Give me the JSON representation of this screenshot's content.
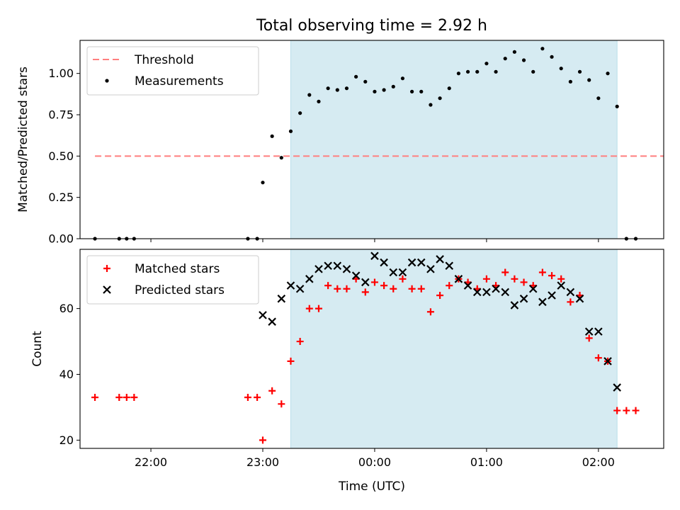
{
  "chart_data": [
    {
      "type": "scatter",
      "title": "Total observing time = 2.92 h",
      "xlabel": "",
      "ylabel": "Matched/Predicted stars",
      "x_axis": "time",
      "xlim": [
        "21:22",
        "02:35"
      ],
      "ylim": [
        0,
        1.2
      ],
      "yticks": [
        0.0,
        0.25,
        0.5,
        0.75,
        1.0
      ],
      "ytick_labels": [
        "0.00",
        "0.25",
        "0.50",
        "0.75",
        "1.00"
      ],
      "grid": false,
      "legend_position": "upper left",
      "shaded_region": {
        "from": "23:15",
        "to": "02:10",
        "color": "#add8e6"
      },
      "series": [
        {
          "name": "Threshold",
          "kind": "line",
          "color": "#ff7f7f",
          "style": "dashed",
          "points": [
            [
              "21:30",
              0.5
            ],
            [
              "02:35",
              0.5
            ]
          ]
        },
        {
          "name": "Measurements",
          "kind": "scatter",
          "color": "#000000",
          "points": [
            [
              "21:30",
              0.0
            ],
            [
              "21:43",
              0.0
            ],
            [
              "21:47",
              0.0
            ],
            [
              "21:51",
              0.0
            ],
            [
              "22:52",
              0.0
            ],
            [
              "22:57",
              0.0
            ],
            [
              "23:00",
              0.34
            ],
            [
              "23:05",
              0.62
            ],
            [
              "23:10",
              0.49
            ],
            [
              "23:15",
              0.65
            ],
            [
              "23:20",
              0.76
            ],
            [
              "23:25",
              0.87
            ],
            [
              "23:30",
              0.83
            ],
            [
              "23:35",
              0.91
            ],
            [
              "23:40",
              0.9
            ],
            [
              "23:45",
              0.91
            ],
            [
              "23:50",
              0.98
            ],
            [
              "23:55",
              0.95
            ],
            [
              "00:00",
              0.89
            ],
            [
              "00:05",
              0.9
            ],
            [
              "00:10",
              0.92
            ],
            [
              "00:15",
              0.97
            ],
            [
              "00:20",
              0.89
            ],
            [
              "00:25",
              0.89
            ],
            [
              "00:30",
              0.81
            ],
            [
              "00:35",
              0.85
            ],
            [
              "00:40",
              0.91
            ],
            [
              "00:45",
              1.0
            ],
            [
              "00:50",
              1.01
            ],
            [
              "00:55",
              1.01
            ],
            [
              "01:00",
              1.06
            ],
            [
              "01:05",
              1.01
            ],
            [
              "01:10",
              1.09
            ],
            [
              "01:15",
              1.13
            ],
            [
              "01:20",
              1.08
            ],
            [
              "01:25",
              1.01
            ],
            [
              "01:30",
              1.15
            ],
            [
              "01:35",
              1.1
            ],
            [
              "01:40",
              1.03
            ],
            [
              "01:45",
              0.95
            ],
            [
              "01:50",
              1.01
            ],
            [
              "01:55",
              0.96
            ],
            [
              "02:00",
              0.85
            ],
            [
              "02:05",
              1.0
            ],
            [
              "02:10",
              0.8
            ],
            [
              "02:15",
              0.0
            ],
            [
              "02:20",
              0.0
            ]
          ]
        }
      ]
    },
    {
      "type": "scatter",
      "title": "",
      "xlabel": "Time (UTC)",
      "ylabel": "Count",
      "x_axis": "time",
      "xlim": [
        "21:22",
        "02:35"
      ],
      "ylim": [
        17.5,
        78
      ],
      "yticks": [
        20,
        40,
        60
      ],
      "ytick_labels": [
        "20",
        "40",
        "60"
      ],
      "xticks": [
        "22:00",
        "23:00",
        "00:00",
        "01:00",
        "02:00"
      ],
      "grid": false,
      "legend_position": "upper left",
      "shaded_region": {
        "from": "23:15",
        "to": "02:10",
        "color": "#add8e6"
      },
      "series": [
        {
          "name": "Matched stars",
          "kind": "scatter",
          "marker": "plus",
          "color": "#ff0000",
          "points": [
            [
              "21:30",
              33
            ],
            [
              "21:43",
              33
            ],
            [
              "21:47",
              33
            ],
            [
              "21:51",
              33
            ],
            [
              "22:52",
              33
            ],
            [
              "22:57",
              33
            ],
            [
              "23:00",
              20
            ],
            [
              "23:05",
              35
            ],
            [
              "23:10",
              31
            ],
            [
              "23:15",
              44
            ],
            [
              "23:20",
              50
            ],
            [
              "23:25",
              60
            ],
            [
              "23:30",
              60
            ],
            [
              "23:35",
              67
            ],
            [
              "23:40",
              66
            ],
            [
              "23:45",
              66
            ],
            [
              "23:50",
              69
            ],
            [
              "23:55",
              65
            ],
            [
              "00:00",
              68
            ],
            [
              "00:05",
              67
            ],
            [
              "00:10",
              66
            ],
            [
              "00:15",
              69
            ],
            [
              "00:20",
              66
            ],
            [
              "00:25",
              66
            ],
            [
              "00:30",
              59
            ],
            [
              "00:35",
              64
            ],
            [
              "00:40",
              67
            ],
            [
              "00:45",
              69
            ],
            [
              "00:50",
              68
            ],
            [
              "00:55",
              66
            ],
            [
              "01:00",
              69
            ],
            [
              "01:05",
              67
            ],
            [
              "01:10",
              71
            ],
            [
              "01:15",
              69
            ],
            [
              "01:20",
              68
            ],
            [
              "01:25",
              67
            ],
            [
              "01:30",
              71
            ],
            [
              "01:35",
              70
            ],
            [
              "01:40",
              69
            ],
            [
              "01:45",
              62
            ],
            [
              "01:50",
              64
            ],
            [
              "01:55",
              51
            ],
            [
              "02:00",
              45
            ],
            [
              "02:05",
              44
            ],
            [
              "02:10",
              29
            ],
            [
              "02:15",
              29
            ],
            [
              "02:20",
              29
            ]
          ]
        },
        {
          "name": "Predicted stars",
          "kind": "scatter",
          "marker": "x",
          "color": "#000000",
          "points": [
            [
              "23:00",
              58
            ],
            [
              "23:05",
              56
            ],
            [
              "23:10",
              63
            ],
            [
              "23:15",
              67
            ],
            [
              "23:20",
              66
            ],
            [
              "23:25",
              69
            ],
            [
              "23:30",
              72
            ],
            [
              "23:35",
              73
            ],
            [
              "23:40",
              73
            ],
            [
              "23:45",
              72
            ],
            [
              "23:50",
              70
            ],
            [
              "23:55",
              68
            ],
            [
              "00:00",
              76
            ],
            [
              "00:05",
              74
            ],
            [
              "00:10",
              71
            ],
            [
              "00:15",
              71
            ],
            [
              "00:20",
              74
            ],
            [
              "00:25",
              74
            ],
            [
              "00:30",
              72
            ],
            [
              "00:35",
              75
            ],
            [
              "00:40",
              73
            ],
            [
              "00:45",
              69
            ],
            [
              "00:50",
              67
            ],
            [
              "00:55",
              65
            ],
            [
              "01:00",
              65
            ],
            [
              "01:05",
              66
            ],
            [
              "01:10",
              65
            ],
            [
              "01:15",
              61
            ],
            [
              "01:20",
              63
            ],
            [
              "01:25",
              66
            ],
            [
              "01:30",
              62
            ],
            [
              "01:35",
              64
            ],
            [
              "01:40",
              67
            ],
            [
              "01:45",
              65
            ],
            [
              "01:50",
              63
            ],
            [
              "01:55",
              53
            ],
            [
              "02:00",
              53
            ],
            [
              "02:05",
              44
            ],
            [
              "02:10",
              36
            ]
          ]
        }
      ]
    }
  ]
}
